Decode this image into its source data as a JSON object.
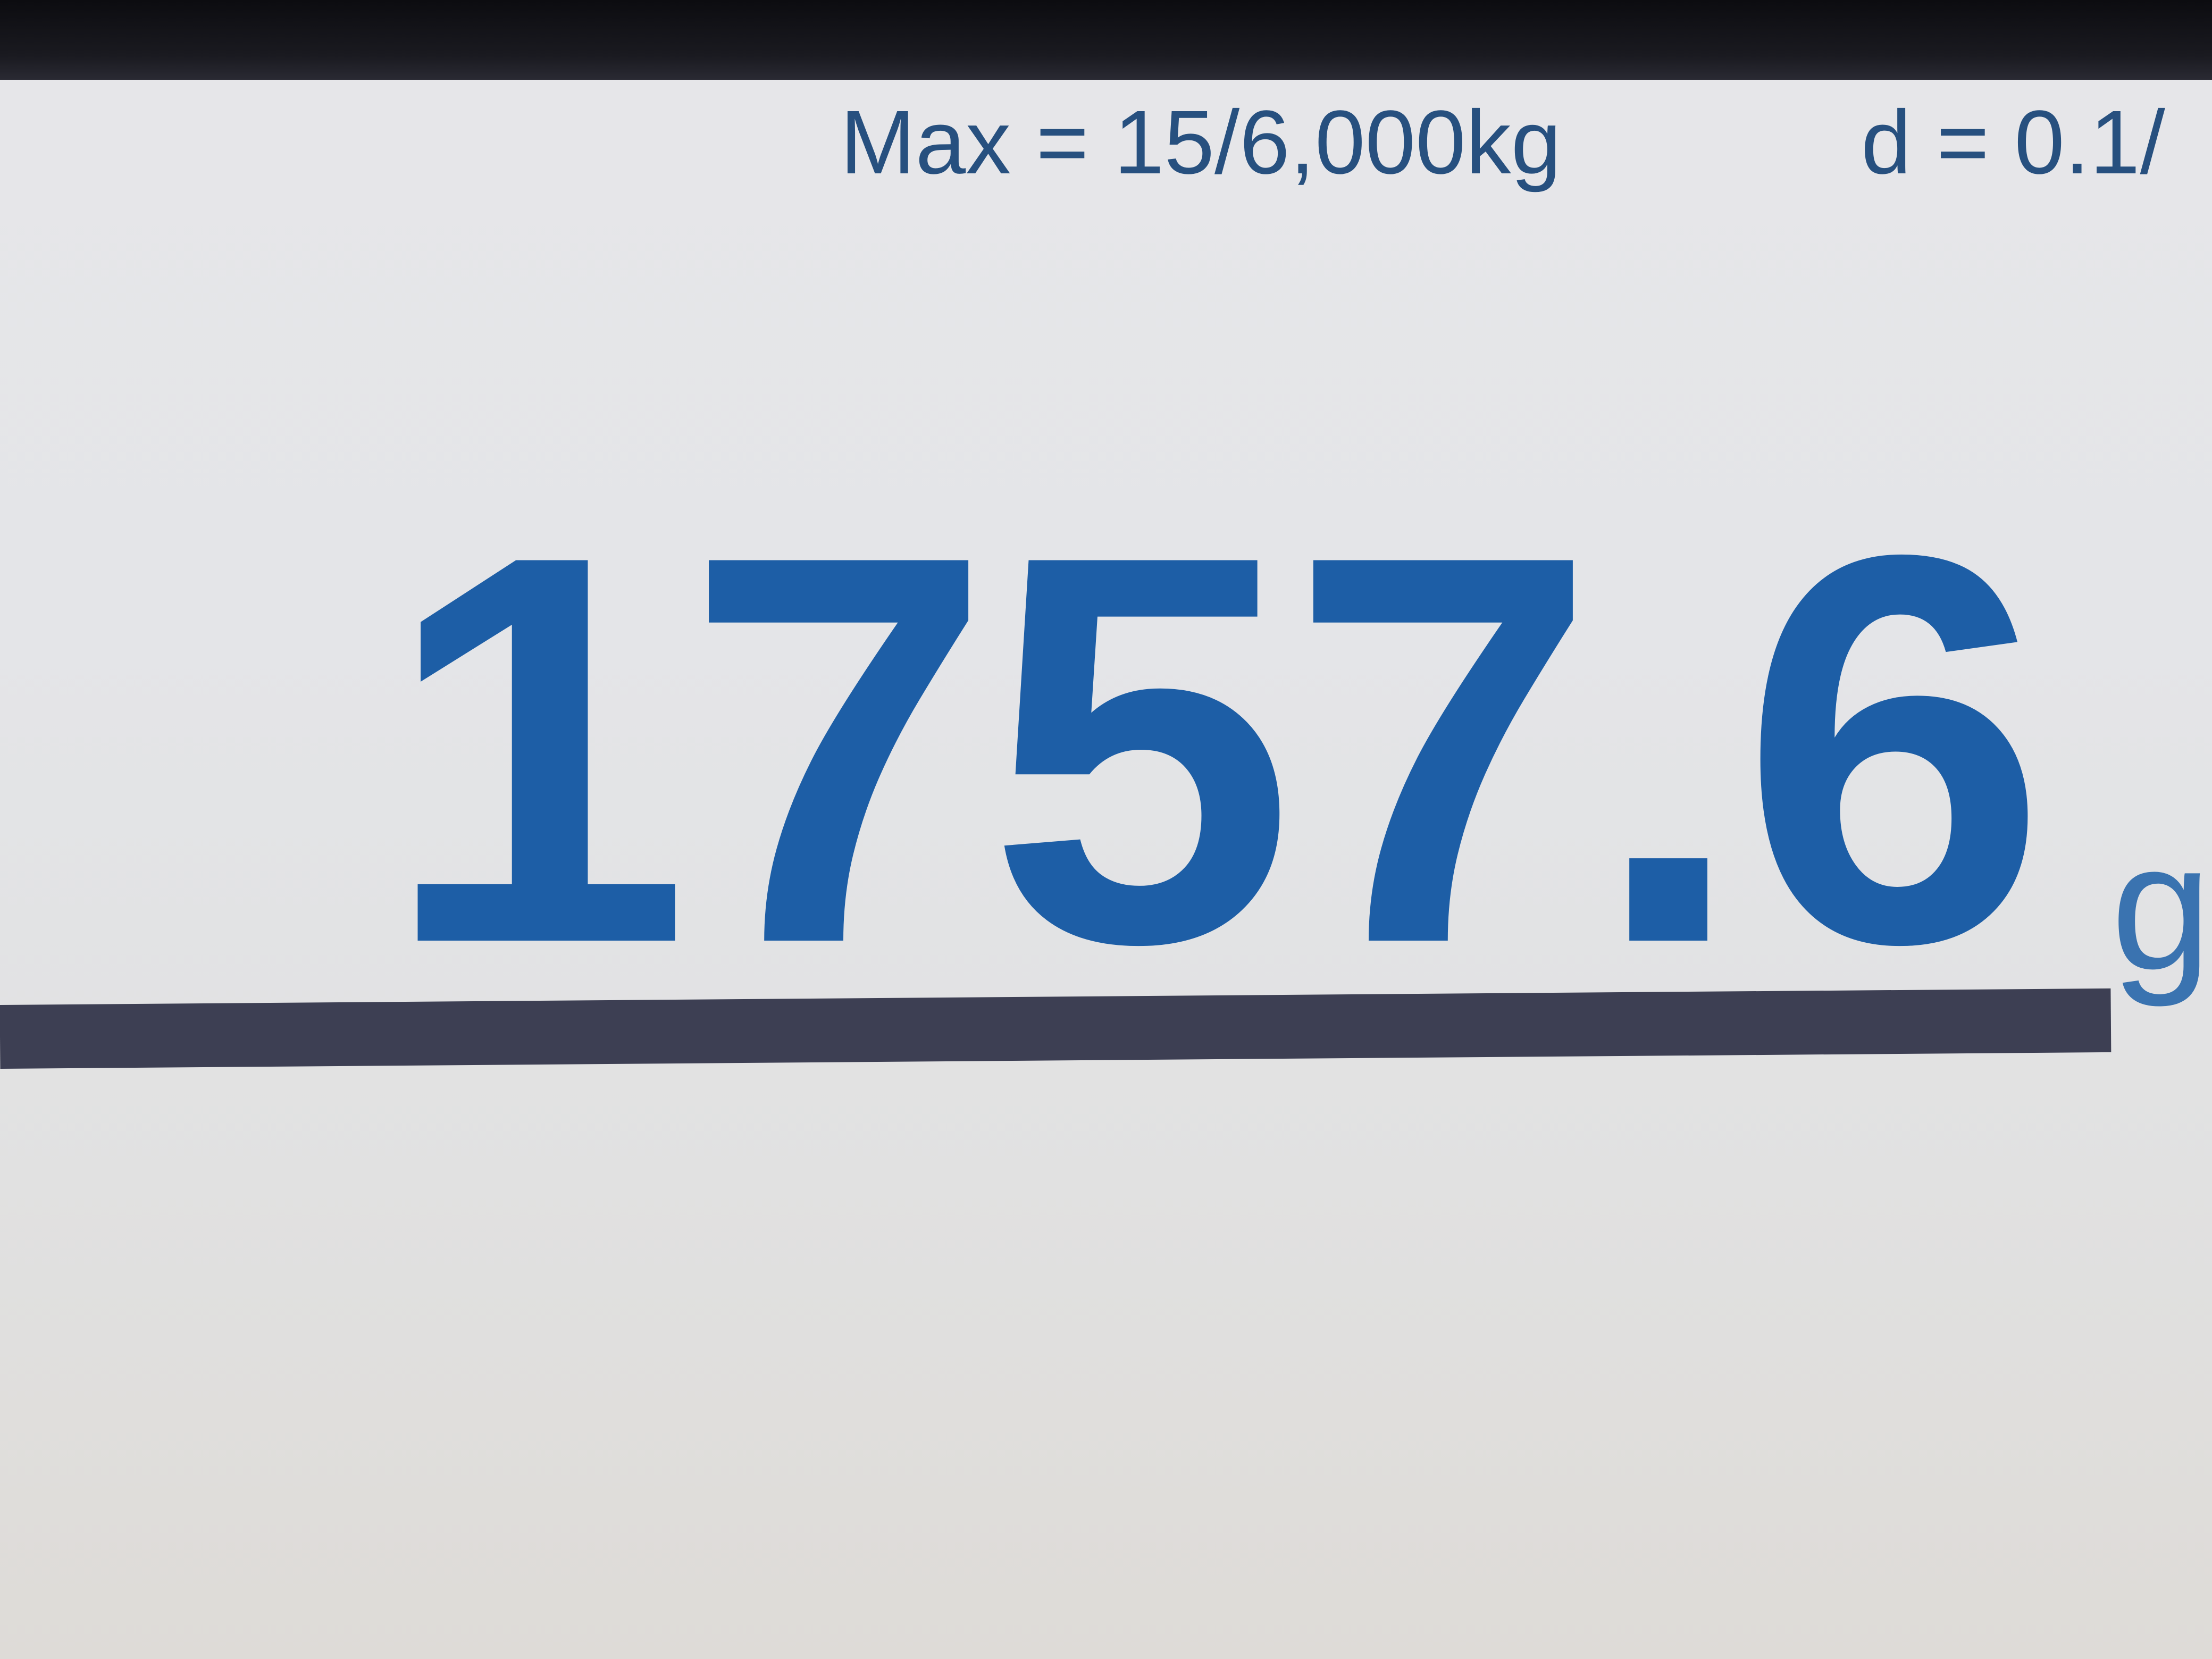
{
  "scale_display": {
    "capacity_label": "Max = 15/6,000kg",
    "division_label": "d = 0.1/",
    "weight_value": "1757.6",
    "weight_unit": "g"
  },
  "colors": {
    "reading": "#1d5ea6",
    "spec_text": "#27507f",
    "divider": "#3d3f53",
    "background": "#e4e5e8"
  }
}
